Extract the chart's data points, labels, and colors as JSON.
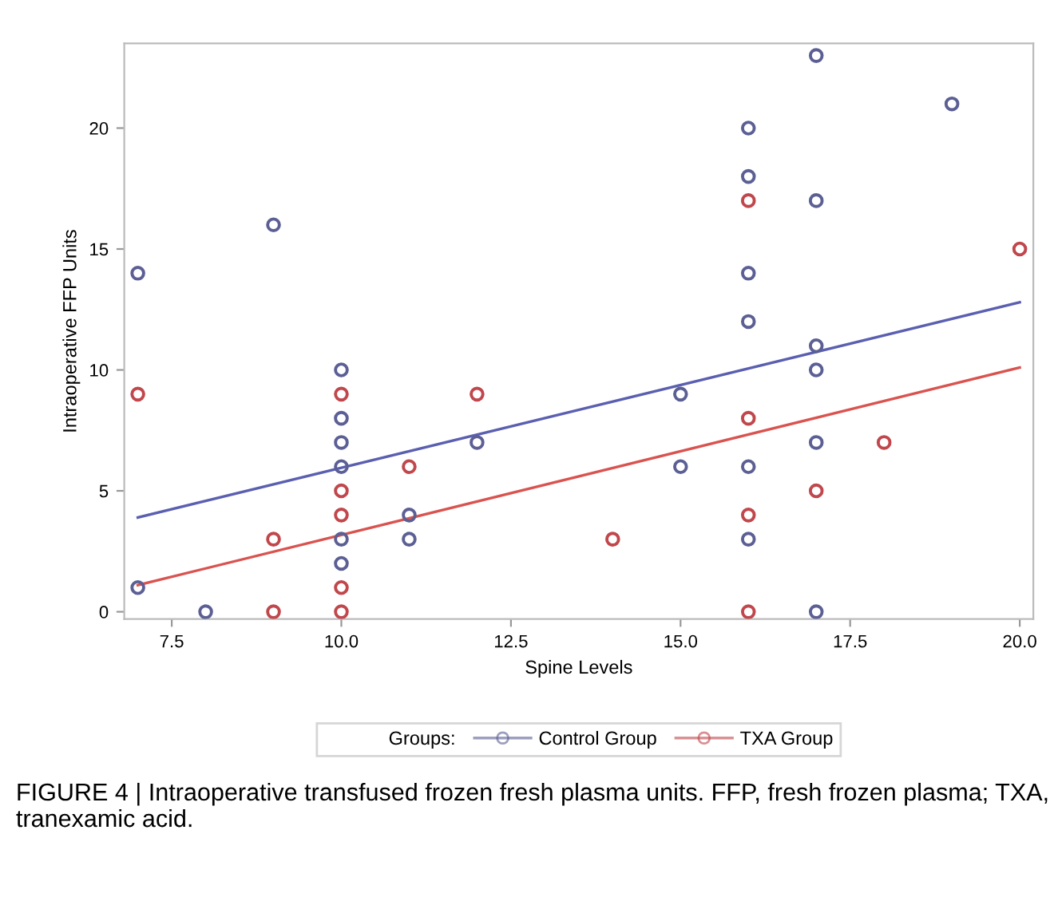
{
  "chart_data": {
    "type": "scatter",
    "xlabel": "Spine Levels",
    "ylabel": "Intraoperative FFP Units",
    "legend_title": "Groups:",
    "xlim": [
      6.8,
      20.2
    ],
    "ylim": [
      -0.3,
      23.5
    ],
    "xticks": [
      {
        "value": 7.5,
        "label": "7.5"
      },
      {
        "value": 10,
        "label": "10.0"
      },
      {
        "value": 12.5,
        "label": "12.5"
      },
      {
        "value": 15,
        "label": "15.0"
      },
      {
        "value": 17.5,
        "label": "17.5"
      },
      {
        "value": 20,
        "label": "20.0"
      }
    ],
    "yticks": [
      0,
      5,
      10,
      15,
      20
    ],
    "grid": false,
    "legend": "bottom",
    "marker": "circle",
    "series": [
      {
        "name": "Control Group",
        "color": "#5b5f94",
        "x": [
          7,
          7,
          8,
          9,
          10,
          10,
          10,
          10,
          10,
          10,
          11,
          11,
          12,
          15,
          15,
          16,
          16,
          16,
          16,
          16,
          16,
          17,
          17,
          17,
          17,
          17,
          17,
          19
        ],
        "values": [
          14,
          1,
          0,
          16,
          10,
          8,
          7,
          6,
          3,
          2,
          4,
          3,
          7,
          9,
          6,
          20,
          18,
          14,
          12,
          6,
          3,
          23,
          17,
          11,
          10,
          7,
          0,
          21
        ]
      },
      {
        "name": "TXA Group",
        "color": "#c0474c",
        "x": [
          7,
          9,
          9,
          10,
          10,
          10,
          10,
          10,
          11,
          12,
          14,
          16,
          16,
          16,
          16,
          17,
          18,
          20
        ],
        "values": [
          9,
          3,
          0,
          9,
          5,
          4,
          1,
          0,
          6,
          9,
          3,
          17,
          8,
          4,
          0,
          5,
          7,
          15
        ]
      },
      {
        "color": "#5a5fb0",
        "type": "line",
        "x": [
          7,
          20
        ],
        "values": [
          3.9,
          12.8
        ],
        "marker": "none"
      },
      {
        "color": "#d9534f",
        "type": "line",
        "x": [
          7,
          20
        ],
        "values": [
          1.1,
          10.1
        ],
        "marker": "none"
      }
    ],
    "annotations": [
      "FIGURE 4 | Intraoperative transfused frozen fresh plasma units. FFP, fresh frozen plasma; TXA, tranexamic acid."
    ]
  }
}
